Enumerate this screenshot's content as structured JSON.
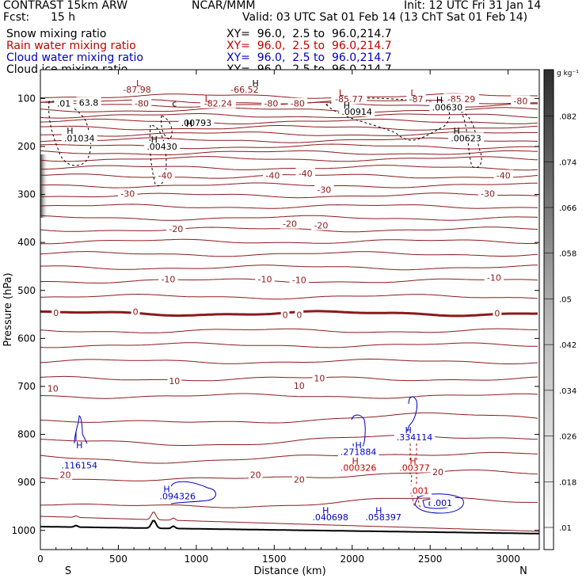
{
  "header": {
    "title_left": "CONTRAST 15km ARW",
    "title_center": "NCAR/MMM",
    "init": "Init: 12 UTC Fri 31 Jan 14",
    "fcst_label": "Fcst:",
    "fcst_value": "15 h",
    "valid": "Valid: 03 UTC Sat 01 Feb 14 (13 ChT Sat 01 Feb 14)",
    "rows": [
      {
        "name": "Snow mixing ratio",
        "xy": "XY=  96.0,  2.5 to  96.0,214.7",
        "color": "#000000"
      },
      {
        "name": "Rain water mixing ratio",
        "xy": "XY=  96.0,  2.5 to  96.0,214.7",
        "color": "#c00000"
      },
      {
        "name": "Cloud water mixing ratio",
        "xy": "XY=  96.0,  2.5 to  96.0,214.7",
        "color": "#0000c0"
      },
      {
        "name": "Cloud ice mixing ratio",
        "xy": "XY=  96.0,  2.5 to  96.0,214.7",
        "color": "#000000"
      }
    ]
  },
  "chart_data": {
    "type": "cross-section contour",
    "title": "CONTRAST 15km ARW",
    "xlabel": "Distance (km)",
    "ylabel": "Pressure (hPa)",
    "xlim": [
      0,
      3200
    ],
    "ylim": [
      1040,
      40
    ],
    "x_ticks": [
      0,
      500,
      1000,
      1500,
      2000,
      2500,
      3000
    ],
    "y_ticks": [
      100,
      200,
      300,
      400,
      500,
      600,
      700,
      800,
      900,
      1000
    ],
    "end_labels": {
      "left": "S",
      "right": "N"
    },
    "colorbar": {
      "unit": "g kg⁻¹",
      "ticks": [
        0.01,
        0.018,
        0.026,
        0.034,
        0.042,
        0.05,
        0.058,
        0.066,
        0.074,
        0.082
      ],
      "tick_labels": [
        ".01",
        ".018",
        ".026",
        ".034",
        ".042",
        ".05",
        ".058",
        ".066",
        ".074",
        ".082"
      ]
    },
    "temperature_contour_labels": [
      {
        "label": "-87.98",
        "x": 620,
        "p": 83
      },
      {
        "label": "-66.52",
        "x": 1310,
        "p": 83
      },
      {
        "label": "-85.77",
        "x": 1980,
        "p": 103
      },
      {
        "label": "-87",
        "x": 2410,
        "p": 103
      },
      {
        "label": "-85.29",
        "x": 2700,
        "p": 103
      },
      {
        "label": "-82.24",
        "x": 1140,
        "p": 112
      },
      {
        "label": "-80",
        "x": 650,
        "p": 112
      },
      {
        "label": "-80",
        "x": 1480,
        "p": 112
      },
      {
        "label": "-80",
        "x": 1650,
        "p": 112
      },
      {
        "label": "-80",
        "x": 3080,
        "p": 107
      },
      {
        "label": "-40",
        "x": 800,
        "p": 262
      },
      {
        "label": "-40",
        "x": 1490,
        "p": 262
      },
      {
        "label": "-40",
        "x": 1700,
        "p": 258
      },
      {
        "label": "-40",
        "x": 2970,
        "p": 262
      },
      {
        "label": "-30",
        "x": 560,
        "p": 300
      },
      {
        "label": "-30",
        "x": 1820,
        "p": 292
      },
      {
        "label": "-30",
        "x": 2870,
        "p": 300
      },
      {
        "label": "-20",
        "x": 870,
        "p": 373
      },
      {
        "label": "-20",
        "x": 1600,
        "p": 363
      },
      {
        "label": "-20",
        "x": 1800,
        "p": 366
      },
      {
        "label": "-10",
        "x": 820,
        "p": 478
      },
      {
        "label": "-10",
        "x": 1440,
        "p": 478
      },
      {
        "label": "-10",
        "x": 1660,
        "p": 480
      },
      {
        "label": "-10",
        "x": 2910,
        "p": 475
      },
      {
        "label": "0",
        "x": 100,
        "p": 548
      },
      {
        "label": "0",
        "x": 610,
        "p": 546
      },
      {
        "label": "0",
        "x": 1570,
        "p": 552
      },
      {
        "label": "0",
        "x": 1660,
        "p": 552
      },
      {
        "label": "0",
        "x": 2930,
        "p": 549
      },
      {
        "label": "10",
        "x": 80,
        "p": 706
      },
      {
        "label": "10",
        "x": 860,
        "p": 690
      },
      {
        "label": "10",
        "x": 1790,
        "p": 684
      },
      {
        "label": "10",
        "x": 1660,
        "p": 700
      },
      {
        "label": "20",
        "x": 160,
        "p": 886
      },
      {
        "label": "20",
        "x": 1380,
        "p": 886
      },
      {
        "label": "20",
        "x": 1660,
        "p": 896
      },
      {
        "label": "20",
        "x": 2550,
        "p": 880
      }
    ],
    "hl_markers": [
      {
        "type": "L",
        "x": 630,
        "p": 68,
        "color": "#c00000"
      },
      {
        "type": "H",
        "x": 1380,
        "p": 68,
        "color": "#000000"
      },
      {
        "type": "L",
        "x": 1930,
        "p": 88,
        "color": "#c00000"
      },
      {
        "type": "L",
        "x": 2390,
        "p": 88,
        "color": "#c00000"
      },
      {
        "type": "H",
        "x": 2560,
        "p": 103,
        "color": "#000000"
      },
      {
        "type": "c",
        "x": 860,
        "p": 110,
        "color": "#000000"
      },
      {
        "type": "L",
        "x": 1070,
        "p": 100,
        "color": "#c00000"
      },
      {
        "type": "H",
        "x": 1965,
        "p": 114,
        "color": "#000000"
      },
      {
        "type": "H",
        "x": 955,
        "p": 152,
        "color": "#000000"
      },
      {
        "type": "H",
        "x": 190,
        "p": 167,
        "color": "#000000"
      },
      {
        "type": "H",
        "x": 2670,
        "p": 167,
        "color": "#000000"
      },
      {
        "type": "H",
        "x": 730,
        "p": 185,
        "color": "#000000"
      },
      {
        "type": "H",
        "x": 250,
        "p": 822,
        "color": "#0000c0"
      },
      {
        "type": "H",
        "x": 2040,
        "p": 822,
        "color": "#0000c0"
      },
      {
        "type": "H",
        "x": 2360,
        "p": 791,
        "color": "#0000c0"
      },
      {
        "type": "H",
        "x": 2020,
        "p": 855,
        "color": "#c00000"
      },
      {
        "type": "H",
        "x": 2390,
        "p": 855,
        "color": "#c00000"
      },
      {
        "type": "H",
        "x": 810,
        "p": 914,
        "color": "#0000c0"
      },
      {
        "type": "H",
        "x": 1830,
        "p": 958,
        "color": "#0000c0"
      },
      {
        "type": "H",
        "x": 2170,
        "p": 958,
        "color": "#0000c0"
      }
    ],
    "maxima_labels": [
      {
        "label": ".01",
        "x": 150,
        "p": 112,
        "color": "#000000"
      },
      {
        "label": "63.8",
        "x": 310,
        "p": 110,
        "color": "#000000"
      },
      {
        "label": ".00793",
        "x": 1000,
        "p": 152,
        "color": "#000000"
      },
      {
        "label": ".00914",
        "x": 2030,
        "p": 129,
        "color": "#000000"
      },
      {
        "label": ".00630",
        "x": 2610,
        "p": 120,
        "color": "#000000"
      },
      {
        "label": ".01034",
        "x": 250,
        "p": 184,
        "color": "#000000"
      },
      {
        "label": ".00623",
        "x": 2730,
        "p": 184,
        "color": "#000000"
      },
      {
        "label": ".00430",
        "x": 780,
        "p": 202,
        "color": "#000000"
      },
      {
        "label": ".116154",
        "x": 250,
        "p": 866,
        "color": "#0000c0"
      },
      {
        "label": ".271884",
        "x": 2040,
        "p": 838,
        "color": "#0000c0"
      },
      {
        "label": ".334114",
        "x": 2400,
        "p": 807,
        "color": "#0000c0"
      },
      {
        "label": ".000326",
        "x": 2040,
        "p": 871,
        "color": "#c00000"
      },
      {
        "label": ".00377",
        "x": 2400,
        "p": 871,
        "color": "#c00000"
      },
      {
        "label": ".001",
        "x": 2430,
        "p": 919,
        "color": "#c00000"
      },
      {
        "label": ".094326",
        "x": 880,
        "p": 930,
        "color": "#0000c0"
      },
      {
        "label": ".040698",
        "x": 1860,
        "p": 974,
        "color": "#0000c0"
      },
      {
        "label": ".058397",
        "x": 2200,
        "p": 974,
        "color": "#0000c0"
      },
      {
        "label": ".001",
        "x": 2580,
        "p": 944,
        "color": "#0000c0"
      }
    ]
  }
}
